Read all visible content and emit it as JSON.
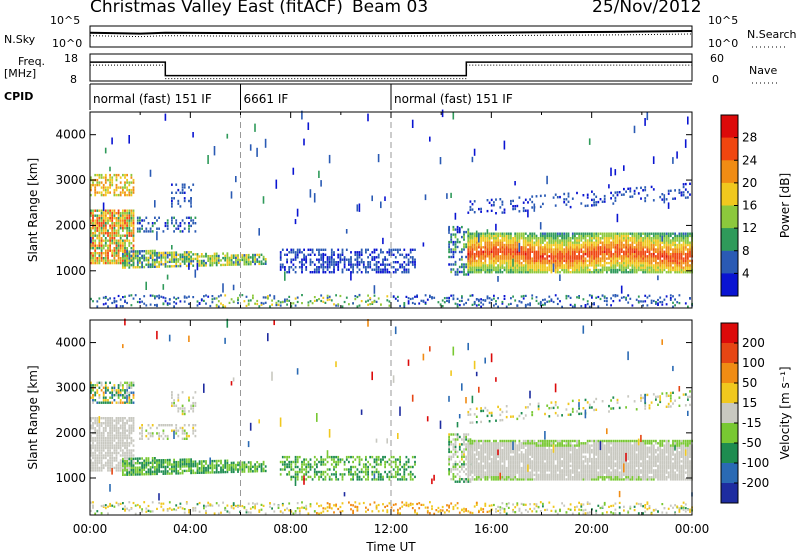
{
  "header": {
    "station": "Christmas Valley East (fitACF)",
    "beam": "Beam 03",
    "date": "25/Nov/2012"
  },
  "chart_data": [
    {
      "type": "line",
      "name": "nsky-nsearch-panel",
      "left_label": "N.Sky",
      "right_label": "N.Search",
      "left_ticks": [
        "10^5",
        "10^0"
      ],
      "right_ticks": [
        "10^5",
        "10^0"
      ],
      "x": [
        "00:00",
        "02:00",
        "03:00",
        "06:00",
        "09:00",
        "12:00",
        "15:00",
        "18:00",
        "21:00",
        "24:00"
      ],
      "nsky_log": [
        3.4,
        3.2,
        3.4,
        3.3,
        3.3,
        3.3,
        3.4,
        3.5,
        3.6,
        3.8
      ]
    },
    {
      "type": "line",
      "name": "freq-nave-panel",
      "left_label": "Freq. [MHz]",
      "right_label": "Nave",
      "left_ticks": [
        "18",
        "8"
      ],
      "right_ticks": [
        "60",
        "0"
      ],
      "freq_segments": [
        {
          "start": "00:00",
          "end": "03:00",
          "mhz": 15
        },
        {
          "start": "03:00",
          "end": "15:00",
          "mhz": 10
        },
        {
          "start": "15:00",
          "end": "24:00",
          "mhz": 15
        }
      ]
    },
    {
      "type": "table",
      "name": "cpid-panel",
      "label": "CPID",
      "segments": [
        {
          "start": "00:00",
          "end": "06:00",
          "text": "normal (fast) 151 IF"
        },
        {
          "start": "06:00",
          "end": "12:00",
          "text": "6661 IF"
        },
        {
          "start": "12:00",
          "end": "24:00",
          "text": "normal (fast) 151 IF"
        }
      ]
    },
    {
      "type": "heatmap",
      "name": "power-panel",
      "ylabel": "Slant Range [km]",
      "yticks": [
        "1000",
        "2000",
        "3000",
        "4000"
      ],
      "ylim": [
        180,
        4500
      ],
      "colorbar_label": "Power [dB]",
      "colorbar_ticks": [
        "4",
        "8",
        "12",
        "16",
        "20",
        "24",
        "28"
      ],
      "colorbar_range": [
        0,
        30
      ],
      "colorbar_colors": [
        "#0a14d2",
        "#2a5ab4",
        "#2f9a5a",
        "#8cc83c",
        "#f0c81e",
        "#f08c14",
        "#f04610",
        "#dc0a0a"
      ]
    },
    {
      "type": "heatmap",
      "name": "velocity-panel",
      "ylabel": "Slant Range [km]",
      "yticks": [
        "1000",
        "2000",
        "3000",
        "4000"
      ],
      "ylim": [
        180,
        4500
      ],
      "xlabel": "Time UT",
      "xticks": [
        "00:00",
        "04:00",
        "08:00",
        "12:00",
        "16:00",
        "20:00",
        "00:00"
      ],
      "colorbar_label": "Velocity [m s⁻¹]",
      "colorbar_ticks": [
        "200",
        "100",
        "50",
        "15",
        "-15",
        "-50",
        "-100",
        "-200"
      ],
      "colorbar_colors": [
        "#1e2ca0",
        "#2a6ab4",
        "#1e8c50",
        "#78c832",
        "#c8c8c0",
        "#f0c81e",
        "#f08c14",
        "#e64614",
        "#dc0a0a"
      ]
    }
  ]
}
